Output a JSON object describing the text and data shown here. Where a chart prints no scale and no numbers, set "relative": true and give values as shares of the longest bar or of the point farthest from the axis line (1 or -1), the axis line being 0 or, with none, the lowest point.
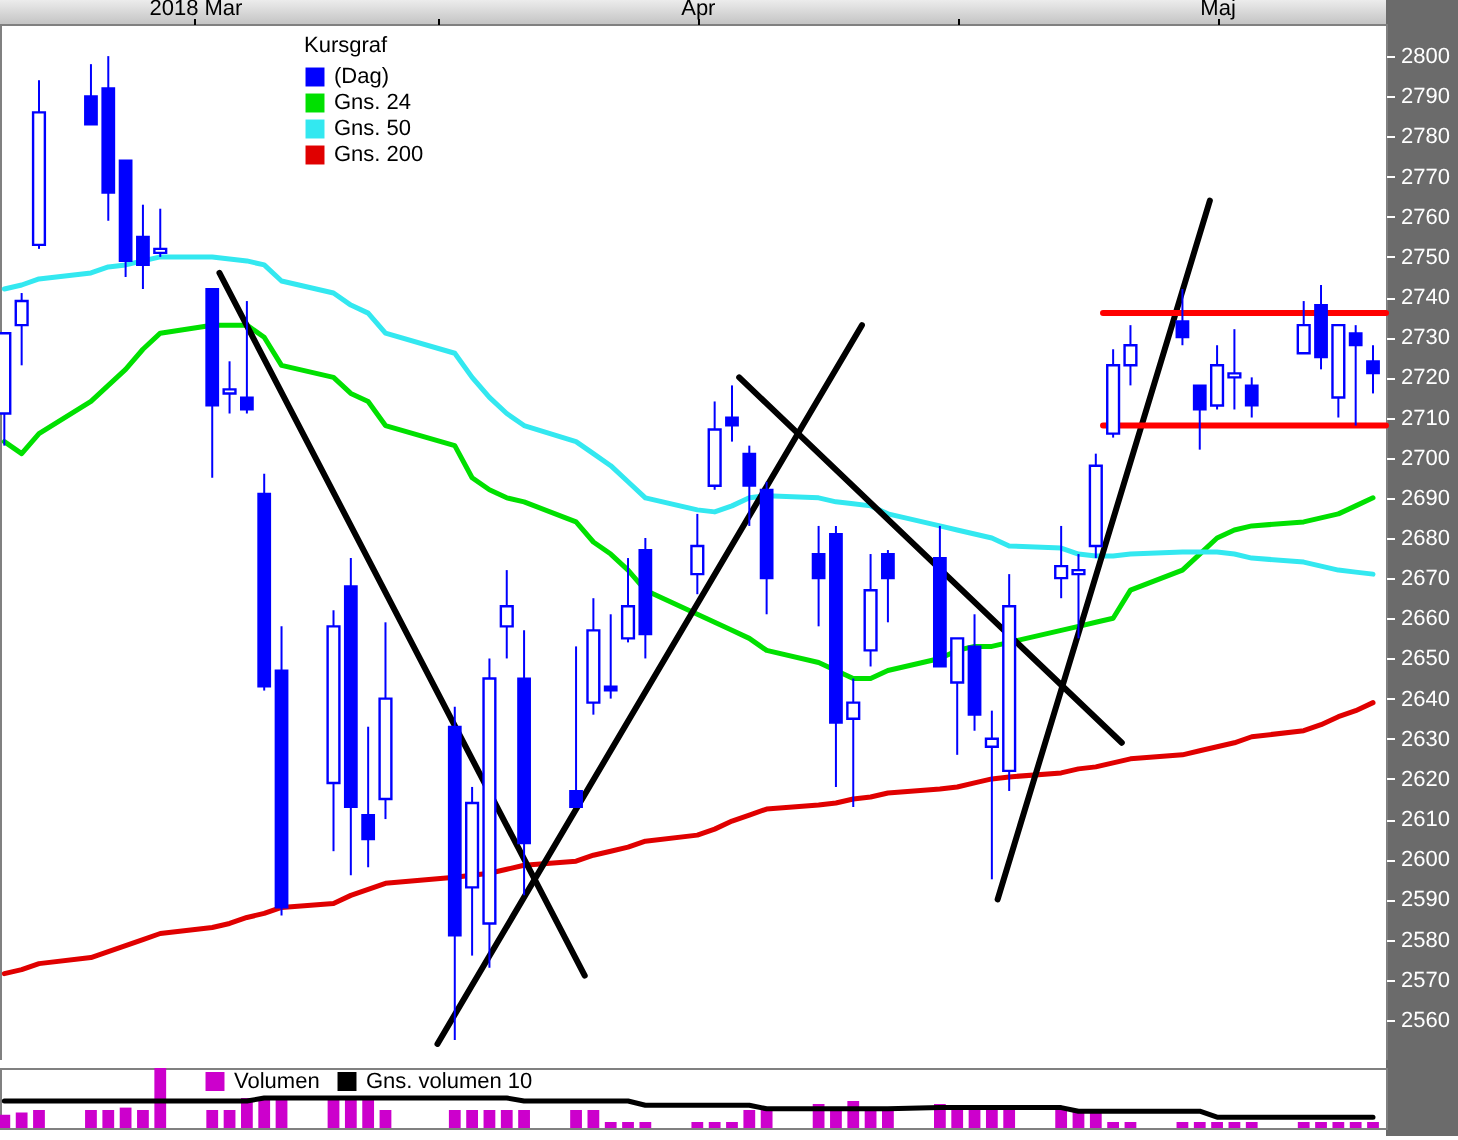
{
  "chart_data": [
    {
      "type": "candlestick",
      "legend": "top left",
      "legend_title": "Kursgraf",
      "x": [
        "2018-03-07",
        "2018-03-08",
        "2018-03-09",
        "2018-03-12",
        "2018-03-13",
        "2018-03-14",
        "2018-03-15",
        "2018-03-16",
        "2018-03-19",
        "2018-03-20",
        "2018-03-21",
        "2018-03-22",
        "2018-03-23",
        "2018-03-26",
        "2018-03-27",
        "2018-03-28",
        "2018-03-29",
        "2018-04-02",
        "2018-04-03",
        "2018-04-04",
        "2018-04-05",
        "2018-04-06",
        "2018-04-09",
        "2018-04-10",
        "2018-04-11",
        "2018-04-12",
        "2018-04-13",
        "2018-04-16",
        "2018-04-17",
        "2018-04-18",
        "2018-04-19",
        "2018-04-20",
        "2018-04-23",
        "2018-04-24",
        "2018-04-25",
        "2018-04-26",
        "2018-04-27",
        "2018-04-30",
        "2018-05-01",
        "2018-05-02",
        "2018-05-03",
        "2018-05-04",
        "2018-05-07",
        "2018-05-08",
        "2018-05-09",
        "2018-05-10",
        "2018-05-11",
        "2018-05-14",
        "2018-05-15",
        "2018-05-16",
        "2018-05-17",
        "2018-05-18",
        "2018-05-21",
        "2018-05-22",
        "2018-05-23",
        "2018-05-24",
        "2018-05-25"
      ],
      "xlim": [
        "2018-03-06T18:00",
        "2018-05-25T18:00"
      ],
      "xticks": [
        {
          "value": "2018-03-18",
          "label": "2018 Mar"
        },
        {
          "value": "2018-04-01",
          "label": null
        },
        {
          "value": "2018-04-16",
          "label": "Apr"
        },
        {
          "value": "2018-05-01",
          "label": null
        },
        {
          "value": "2018-05-16",
          "label": "Maj"
        }
      ],
      "ylim": [
        2550,
        2808
      ],
      "yticks": [
        2560,
        2570,
        2580,
        2590,
        2600,
        2610,
        2620,
        2630,
        2640,
        2650,
        2660,
        2670,
        2680,
        2690,
        2700,
        2710,
        2720,
        2730,
        2740,
        2750,
        2760,
        2770,
        2780,
        2790,
        2800
      ],
      "series": [
        {
          "name": "(Dag)",
          "color": "#0000ff",
          "ohlc": [
            [
              2711,
              2731,
              2703,
              2731
            ],
            [
              2733,
              2741,
              2723,
              2739
            ],
            [
              2753,
              2794,
              2752,
              2786
            ],
            [
              2790,
              2798,
              2783,
              2783
            ],
            [
              2792,
              2800,
              2759,
              2766
            ],
            [
              2774,
              2774,
              2745,
              2749
            ],
            [
              2755,
              2763,
              2742,
              2748
            ],
            [
              2751,
              2762,
              2750,
              2752
            ],
            [
              2742,
              2742,
              2695,
              2713
            ],
            [
              2716,
              2724,
              2711,
              2717
            ],
            [
              2715,
              2739,
              2711,
              2712
            ],
            [
              2691,
              2696,
              2642,
              2643
            ],
            [
              2647,
              2658,
              2586,
              2588
            ],
            [
              2619,
              2662,
              2602,
              2658
            ],
            [
              2668,
              2675,
              2596,
              2613
            ],
            [
              2611,
              2633,
              2598,
              2605
            ],
            [
              2615,
              2659,
              2610,
              2640
            ],
            [
              2633,
              2638,
              2555,
              2581
            ],
            [
              2593,
              2618,
              2576,
              2614
            ],
            [
              2584,
              2650,
              2573,
              2645
            ],
            [
              2658,
              2672,
              2650,
              2663
            ],
            [
              2645,
              2657,
              2591,
              2604
            ],
            [
              2617,
              2653,
              2613,
              2613
            ],
            [
              2639,
              2665,
              2636,
              2657
            ],
            [
              2643,
              2661,
              2640,
              2642
            ],
            [
              2655,
              2675,
              2654,
              2663
            ],
            [
              2677,
              2680,
              2650,
              2656
            ],
            [
              2671,
              2686,
              2666,
              2678
            ],
            [
              2693,
              2714,
              2692,
              2707
            ],
            [
              2710,
              2718,
              2704,
              2708
            ],
            [
              2701,
              2703,
              2683,
              2693
            ],
            [
              2692,
              2694,
              2661,
              2670
            ],
            [
              2676,
              2683,
              2658,
              2670
            ],
            [
              2681,
              2683,
              2618,
              2634
            ],
            [
              2635,
              2645,
              2613,
              2639
            ],
            [
              2652,
              2676,
              2648,
              2667
            ],
            [
              2676,
              2677,
              2659,
              2670
            ],
            [
              2675,
              2683,
              2648,
              2648
            ],
            [
              2644,
              2655,
              2626,
              2655
            ],
            [
              2653,
              2661,
              2632,
              2636
            ],
            [
              2628,
              2637,
              2595,
              2630
            ],
            [
              2622,
              2671,
              2617,
              2663
            ],
            [
              2670,
              2683,
              2665,
              2673
            ],
            [
              2671,
              2676,
              2655,
              2672
            ],
            [
              2678,
              2701,
              2675,
              2698
            ],
            [
              2706,
              2727,
              2705,
              2723
            ],
            [
              2723,
              2733,
              2718,
              2728
            ],
            [
              2734,
              2742,
              2728,
              2730
            ],
            [
              2718,
              2718,
              2702,
              2712
            ],
            [
              2713,
              2728,
              2712,
              2723
            ],
            [
              2720,
              2732,
              2712,
              2721
            ],
            [
              2718,
              2720,
              2710,
              2713
            ],
            [
              2726,
              2739,
              2726,
              2733
            ],
            [
              2738,
              2743,
              2722,
              2725
            ],
            [
              2715,
              2733,
              2710,
              2733
            ],
            [
              2731,
              2733,
              2708,
              2728
            ],
            [
              2724,
              2728,
              2716,
              2721
            ]
          ]
        },
        {
          "type": "line",
          "name": "Gns. 24",
          "color": "#00e000",
          "values": [
            2704,
            2701,
            2706,
            2714,
            2718,
            2722,
            2727,
            2731,
            2733,
            2733,
            2733,
            2730,
            2723,
            2720,
            2716,
            2714,
            2708,
            2703,
            2695,
            2692,
            2690,
            2689,
            2684,
            2679,
            2676,
            2672,
            2667,
            2661,
            2659,
            2657,
            2655,
            2652,
            2649,
            2647,
            2645,
            2645,
            2647,
            2650,
            2652,
            2653,
            2653,
            2654,
            2657,
            2658,
            2659,
            2660,
            2667,
            2672,
            2676,
            2680,
            2682,
            2683,
            2684,
            2685,
            2686,
            2688,
            2690
          ]
        },
        {
          "type": "line",
          "name": "Gns. 50",
          "color": "#33e8f0",
          "values": [
            2742,
            2743,
            2744.5,
            2746,
            2747.5,
            2748,
            2749,
            2750,
            2750,
            2749.5,
            2749,
            2748,
            2744,
            2741,
            2738,
            2736,
            2731,
            2726,
            2720,
            2715,
            2711,
            2708,
            2704,
            2701,
            2698,
            2694,
            2690,
            2687,
            2686.5,
            2688,
            2690,
            2690.5,
            2690,
            2689,
            2688.5,
            2688,
            2686,
            2683,
            2682,
            2681,
            2680,
            2678,
            2677.5,
            2676,
            2675.5,
            2675.5,
            2676,
            2676.5,
            2676.5,
            2676.5,
            2676,
            2675,
            2674,
            2673,
            2672,
            2671.5,
            2671
          ]
        },
        {
          "type": "line",
          "name": "Gns. 200",
          "color": "#e00000",
          "values": [
            2571.5,
            2572.5,
            2574,
            2575.5,
            2577,
            2578.5,
            2580,
            2581.5,
            2583,
            2584,
            2585.5,
            2586.5,
            2588,
            2589,
            2591,
            2592.5,
            2594,
            2595.5,
            2596,
            2596.5,
            2597.5,
            2598.5,
            2599.5,
            2601,
            2602,
            2603,
            2604.5,
            2606,
            2607.5,
            2609.5,
            2611,
            2612.5,
            2613.5,
            2614,
            2615,
            2615.5,
            2616.5,
            2617.5,
            2618,
            2619,
            2620,
            2620.5,
            2621.5,
            2622.5,
            2623,
            2624,
            2625,
            2626,
            2627,
            2628,
            2629,
            2630.5,
            2632,
            2633.5,
            2635.5,
            2637,
            2639
          ]
        },
        {
          "type": "line",
          "color": "#000000",
          "x": [
            "2018-03-19T10:00",
            "2018-04-09T12:00"
          ],
          "values": [
            2746,
            2571
          ]
        },
        {
          "type": "line",
          "color": "#000000",
          "x": [
            "2018-04-01",
            "2018-04-25T12:00"
          ],
          "values": [
            2554,
            2733
          ]
        },
        {
          "type": "line",
          "color": "#000000",
          "x": [
            "2018-04-18T10:00",
            "2018-05-10T12:00"
          ],
          "values": [
            2720,
            2629
          ]
        },
        {
          "type": "line",
          "color": "#000000",
          "x": [
            "2018-05-03T08:00",
            "2018-05-15T14:00"
          ],
          "values": [
            2590,
            2764
          ]
        },
        {
          "type": "line",
          "color": "#ff0000",
          "x": [
            "2018-05-09T10:00",
            "2018-05-25T18:00"
          ],
          "values": [
            2736,
            2736
          ]
        },
        {
          "type": "line",
          "color": "#ff0000",
          "x": [
            "2018-05-09T10:00",
            "2018-05-25T18:00"
          ],
          "values": [
            2708,
            2708
          ]
        }
      ]
    },
    {
      "type": "bar",
      "relative": true,
      "legend": "top left",
      "x": [
        "2018-03-07",
        "2018-03-08",
        "2018-03-09",
        "2018-03-12",
        "2018-03-13",
        "2018-03-14",
        "2018-03-15",
        "2018-03-16",
        "2018-03-19",
        "2018-03-20",
        "2018-03-21",
        "2018-03-22",
        "2018-03-23",
        "2018-03-26",
        "2018-03-27",
        "2018-03-28",
        "2018-03-29",
        "2018-04-02",
        "2018-04-03",
        "2018-04-04",
        "2018-04-05",
        "2018-04-06",
        "2018-04-09",
        "2018-04-10",
        "2018-04-11",
        "2018-04-12",
        "2018-04-13",
        "2018-04-16",
        "2018-04-17",
        "2018-04-18",
        "2018-04-19",
        "2018-04-20",
        "2018-04-23",
        "2018-04-24",
        "2018-04-25",
        "2018-04-26",
        "2018-04-27",
        "2018-04-30",
        "2018-05-01",
        "2018-05-02",
        "2018-05-03",
        "2018-05-04",
        "2018-05-07",
        "2018-05-08",
        "2018-05-09",
        "2018-05-10",
        "2018-05-11",
        "2018-05-14",
        "2018-05-15",
        "2018-05-16",
        "2018-05-17",
        "2018-05-18",
        "2018-05-21",
        "2018-05-22",
        "2018-05-23",
        "2018-05-24",
        "2018-05-25"
      ],
      "xlim": [
        "2018-03-06T18:00",
        "2018-05-25T18:00"
      ],
      "series": [
        {
          "name": "Volumen",
          "color": "#cc00cc",
          "values": [
            0.22,
            0.26,
            0.3,
            0.3,
            0.3,
            0.34,
            0.3,
            1,
            0.3,
            0.3,
            0.5,
            0.5,
            0.5,
            0.5,
            0.5,
            0.5,
            0.3,
            0.3,
            0.3,
            0.3,
            0.3,
            0.3,
            0.3,
            0.3,
            0.1,
            0.1,
            0.1,
            0.1,
            0.1,
            0.1,
            0.3,
            0.35,
            0.4,
            0.3,
            0.45,
            0.3,
            0.35,
            0.4,
            0.35,
            0.35,
            0.3,
            0.35,
            0.3,
            0.3,
            0.3,
            0.1,
            0.1,
            0.1,
            0.1,
            0.1,
            0.1,
            0.1,
            0.1,
            0.1,
            0.1,
            0.1,
            0.1
          ]
        },
        {
          "type": "line",
          "name": "Gns. volumen 10",
          "color": "#000000",
          "values": [
            0.45,
            0.45,
            0.45,
            0.45,
            0.45,
            0.45,
            0.45,
            0.45,
            0.45,
            0.45,
            0.45,
            0.5,
            0.5,
            0.5,
            0.5,
            0.5,
            0.5,
            0.5,
            0.5,
            0.5,
            0.5,
            0.45,
            0.45,
            0.45,
            0.45,
            0.45,
            0.38,
            0.38,
            0.38,
            0.38,
            0.38,
            0.32,
            0.32,
            0.32,
            0.32,
            0.32,
            0.32,
            0.34,
            0.34,
            0.34,
            0.34,
            0.34,
            0.34,
            0.28,
            0.28,
            0.28,
            0.28,
            0.28,
            0.28,
            0.18,
            0.18,
            0.18,
            0.18,
            0.18,
            0.18,
            0.18,
            0.18
          ]
        }
      ]
    }
  ]
}
